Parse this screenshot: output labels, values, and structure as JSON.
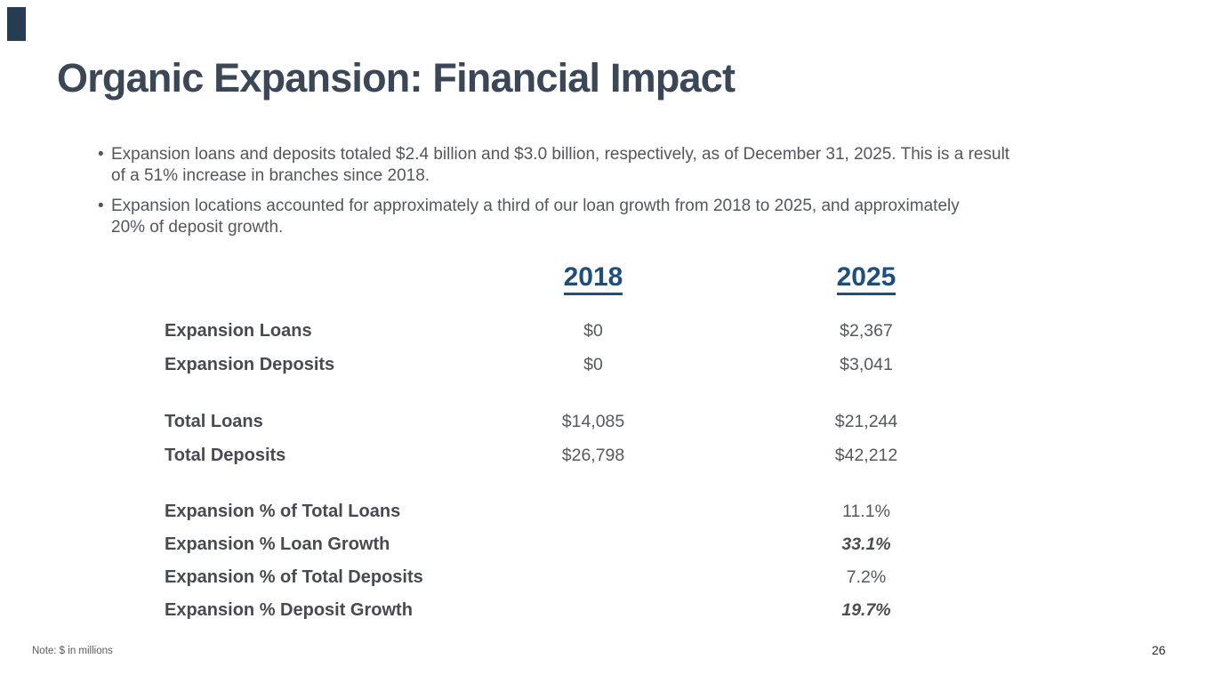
{
  "slide": {
    "title": "Organic Expansion: Financial Impact",
    "bullet_glyph": "•",
    "bullets": [
      {
        "lines": [
          "Expansion loans and deposits totaled $2.4 billion and $3.0 billion, respectively, as of December 31, 2025. This is a result",
          "of a 51% increase in branches since 2018."
        ]
      },
      {
        "lines": [
          "Expansion locations accounted for approximately a third of our loan growth from 2018 to 2025, and approximately",
          "20% of deposit growth."
        ]
      }
    ],
    "colors": {
      "accent_bar": "#253c52",
      "title_text": "#3b4757",
      "body_text": "#53575c",
      "column_header_blue": "#1d4e7c",
      "row_label_text": "#474b51",
      "cell_value_text": "#55595e"
    }
  },
  "table": {
    "column_headers": [
      "2018",
      "2025"
    ],
    "groups": [
      {
        "rows": [
          {
            "label": "Expansion Loans",
            "y2018": "$0",
            "y2025": "$2,367"
          },
          {
            "label": "Expansion Deposits",
            "y2018": "$0",
            "y2025": "$3,041"
          }
        ]
      },
      {
        "rows": [
          {
            "label": "Total Loans",
            "y2018": "$14,085",
            "y2025": "$21,244"
          },
          {
            "label": "Total Deposits",
            "y2018": "$26,798",
            "y2025": "$42,212"
          }
        ]
      },
      {
        "rows": [
          {
            "label": "Expansion % of Total Loans",
            "y2018": "",
            "y2025": "11.1%",
            "emphasis": false
          },
          {
            "label": "Expansion % Loan Growth",
            "y2018": "",
            "y2025": "33.1%",
            "emphasis": true
          },
          {
            "label": "Expansion % of Total Deposits",
            "y2018": "",
            "y2025": "7.2%",
            "emphasis": false
          },
          {
            "label": "Expansion % Deposit Growth",
            "y2018": "",
            "y2025": "19.7%",
            "emphasis": true
          }
        ]
      }
    ]
  },
  "footer": {
    "note": "Note: $ in millions",
    "page_number": "26"
  }
}
